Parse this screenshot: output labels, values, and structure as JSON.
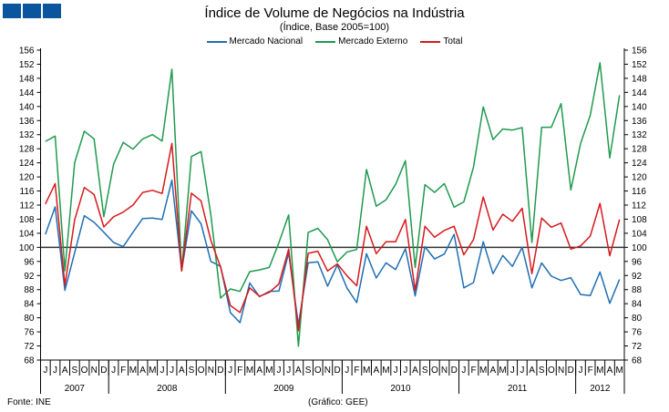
{
  "chart_data": {
    "type": "line",
    "title": "Índice de Volume de Negócios na Indústria",
    "subtitle": "(Índice, Base 2005=100)",
    "ylim": [
      68,
      156
    ],
    "yticks": [
      68,
      72,
      76,
      80,
      84,
      88,
      92,
      96,
      100,
      104,
      108,
      112,
      116,
      120,
      124,
      128,
      132,
      136,
      140,
      144,
      148,
      152,
      156
    ],
    "reference_line": 100,
    "months": [
      "J",
      "J",
      "A",
      "S",
      "O",
      "N",
      "D",
      "J",
      "F",
      "M",
      "A",
      "M",
      "J",
      "J",
      "A",
      "S",
      "O",
      "N",
      "D",
      "J",
      "F",
      "M",
      "A",
      "M",
      "J",
      "J",
      "A",
      "S",
      "O",
      "N",
      "D",
      "J",
      "F",
      "M",
      "A",
      "M",
      "J",
      "J",
      "A",
      "S",
      "O",
      "N",
      "D",
      "J",
      "F",
      "M",
      "A",
      "M",
      "J",
      "J",
      "A",
      "S",
      "O",
      "N",
      "D",
      "J",
      "F",
      "M",
      "A",
      "M"
    ],
    "years": [
      {
        "label": "2007",
        "count": 7
      },
      {
        "label": "2008",
        "count": 12
      },
      {
        "label": "2009",
        "count": 12
      },
      {
        "label": "2010",
        "count": 12
      },
      {
        "label": "2011",
        "count": 12
      },
      {
        "label": "2012",
        "count": 5
      }
    ],
    "legend_position": "top-center",
    "series": [
      {
        "name": "Mercado Nacional",
        "color": "#1f6fb4",
        "values": [
          103.7,
          111.5,
          87.8,
          98.5,
          109,
          107.1,
          104.3,
          101.4,
          100.2,
          104.3,
          108.2,
          108.3,
          107.9,
          119.1,
          93.5,
          110.4,
          106.7,
          96,
          94.6,
          81.5,
          78.6,
          89.9,
          86,
          87.5,
          87.6,
          98.4,
          78,
          95.6,
          95.9,
          89,
          95,
          88.4,
          84.3,
          98.2,
          91.3,
          95.6,
          93.7,
          99.6,
          86.2,
          100.2,
          96.7,
          98.1,
          103.7,
          88.5,
          90,
          101.6,
          92.5,
          97.7,
          94.6,
          100,
          88.5,
          95.6,
          91.8,
          90.6,
          91.4,
          86.6,
          86.3,
          93,
          84.1,
          90.9
        ]
      },
      {
        "name": "Mercado Externo",
        "color": "#1f9a4e",
        "values": [
          130.1,
          131.6,
          93.4,
          124,
          133,
          130.8,
          108.7,
          123.6,
          129.8,
          127.9,
          130.8,
          132,
          130.2,
          150.6,
          93.3,
          125.8,
          127.2,
          109.3,
          85.6,
          88.2,
          87.5,
          93.1,
          93.6,
          94.3,
          101.3,
          109.2,
          71.9,
          104.2,
          105.4,
          102.2,
          95.9,
          98.7,
          99.4,
          122.1,
          111.7,
          113.5,
          117.9,
          124.6,
          94.3,
          117.8,
          115.6,
          118.1,
          111.4,
          112.9,
          122.8,
          139.9,
          130.6,
          133.6,
          133.3,
          134,
          101.4,
          134.1,
          134.1,
          140.8,
          116.3,
          129.5,
          137.5,
          152.4,
          125.4,
          143.2
        ]
      },
      {
        "name": "Total",
        "color": "#d7191c",
        "values": [
          112.3,
          118.1,
          89.2,
          107.8,
          117,
          115,
          105.8,
          108.7,
          110,
          112,
          115.6,
          116.2,
          115.3,
          129.5,
          93.3,
          115.4,
          113.2,
          102,
          94.4,
          83.5,
          81.5,
          88.5,
          86.1,
          87.2,
          89.6,
          99.5,
          76.3,
          98.3,
          98.9,
          93.3,
          95.3,
          91.9,
          89.1,
          106,
          98.2,
          101.6,
          101.6,
          107.9,
          87.7,
          106,
          102.9,
          104.8,
          106,
          97.9,
          102.2,
          114.3,
          104.9,
          109.4,
          107.4,
          111.1,
          92.5,
          108.3,
          105.7,
          106.9,
          99.5,
          100.4,
          103.2,
          112.5,
          97.6,
          107.9
        ]
      }
    ]
  },
  "footer": {
    "source": "Fonte: INE",
    "credit": "(Gráfico: GEE)"
  }
}
